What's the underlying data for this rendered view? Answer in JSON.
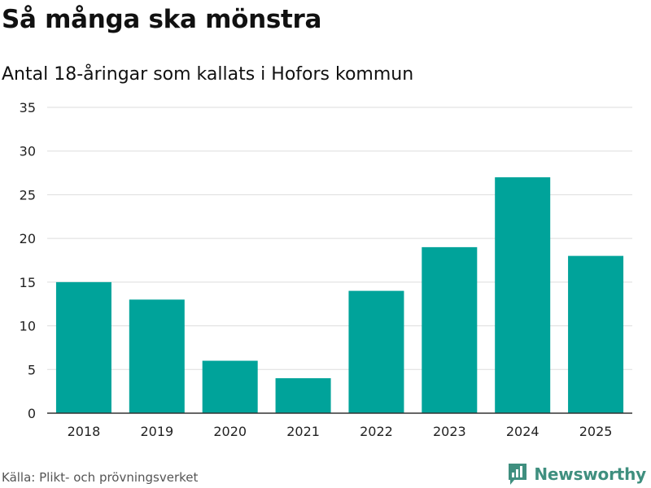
{
  "header": {
    "title": "Så många ska mönstra",
    "subtitle": "Antal 18-åringar som kallats i Hofors kommun"
  },
  "footer": {
    "source": "Källa: Plikt- och prövningsverket",
    "brand": "Newsworthy"
  },
  "colors": {
    "bar": "#00a39a",
    "grid": "#dddddd",
    "axis": "#333333",
    "brand": "#3f8f7f"
  },
  "chart_data": {
    "type": "bar",
    "title": "Så många ska mönstra",
    "subtitle": "Antal 18-åringar som kallats i Hofors kommun",
    "xlabel": "",
    "ylabel": "",
    "categories": [
      "2018",
      "2019",
      "2020",
      "2021",
      "2022",
      "2023",
      "2024",
      "2025"
    ],
    "values": [
      15,
      13,
      6,
      4,
      14,
      19,
      27,
      18
    ],
    "ylim": [
      0,
      35
    ],
    "yticks": [
      0,
      5,
      10,
      15,
      20,
      25,
      30,
      35
    ],
    "grid": true,
    "legend": "none"
  }
}
